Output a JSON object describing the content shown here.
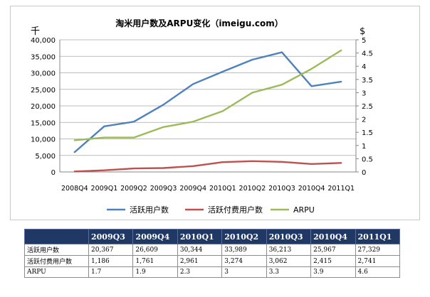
{
  "chart_data": {
    "type": "line",
    "title": "淘米用户数及ARPU变化（imeigu.com）",
    "left_axis_unit": "千",
    "right_axis_unit": "$",
    "categories": [
      "2008Q4",
      "2009Q1",
      "2009Q2",
      "2009Q3",
      "2009Q4",
      "2010Q1",
      "2010Q2",
      "2010Q3",
      "2010Q4",
      "2011Q1"
    ],
    "left_ylim": [
      0,
      40000
    ],
    "left_ticks": [
      "0",
      "5,000",
      "10,000",
      "15,000",
      "20,000",
      "25,000",
      "30,000",
      "35,000",
      "40,000"
    ],
    "right_ylim": [
      0,
      5
    ],
    "right_ticks": [
      "0",
      "0.5",
      "1",
      "1.5",
      "2",
      "2.5",
      "3",
      "3.5",
      "4",
      "4.5",
      "5"
    ],
    "grid": true,
    "legend_position": "bottom",
    "series": [
      {
        "name": "活跃用户数",
        "axis": "left",
        "color": "#4f81bd",
        "values": [
          6000,
          13800,
          15200,
          20367,
          26609,
          30344,
          33989,
          36213,
          25967,
          27329
        ]
      },
      {
        "name": "活跃付费用户数",
        "axis": "left",
        "color": "#c0504d",
        "values": [
          150,
          500,
          1050,
          1186,
          1761,
          2961,
          3274,
          3062,
          2415,
          2741
        ]
      },
      {
        "name": "ARPU",
        "axis": "right",
        "color": "#9bbb59",
        "values": [
          1.2,
          1.3,
          1.3,
          1.7,
          1.9,
          2.3,
          3,
          3.3,
          3.9,
          4.6
        ]
      }
    ]
  },
  "table": {
    "headers": [
      "",
      "2009Q3",
      "2009Q4",
      "2010Q1",
      "2010Q2",
      "2010Q3",
      "2010Q4",
      "2011Q1"
    ],
    "rows": [
      [
        "活跃用户数",
        "20,367",
        "26,609",
        "30,344",
        "33,989",
        "36,213",
        "25,967",
        "27,329"
      ],
      [
        "活跃付费用户数",
        "1,186",
        "1,761",
        "2,961",
        "3,274",
        "3,062",
        "2,415",
        "2,741"
      ],
      [
        "ARPU",
        "1.7",
        "1.9",
        "2.3",
        "3",
        "3.3",
        "3.9",
        "4.6"
      ]
    ]
  }
}
